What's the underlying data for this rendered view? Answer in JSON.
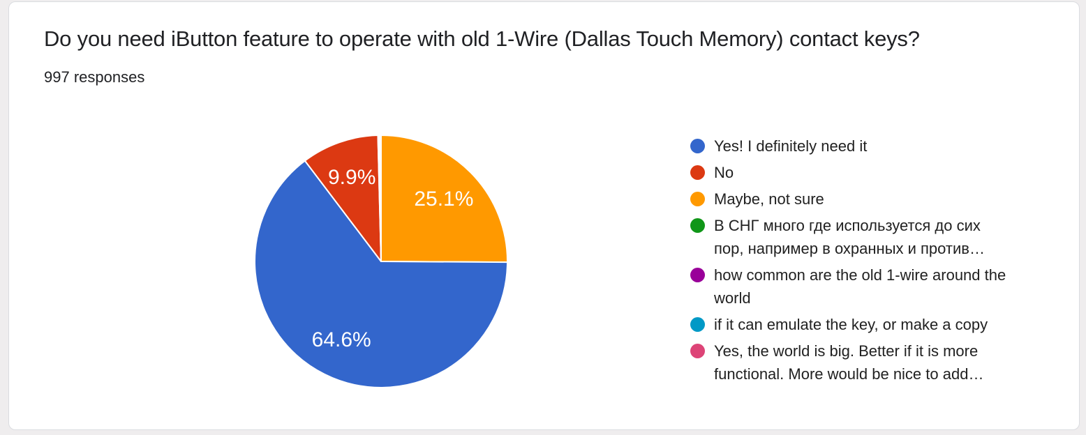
{
  "question": {
    "title": "Do you need iButton feature to operate with old 1-Wire (Dallas Touch Memory) contact keys?",
    "responses_label": "997 responses"
  },
  "chart_data": {
    "type": "pie",
    "title": "Do you need iButton feature to operate with old 1-Wire (Dallas Touch Memory) contact keys?",
    "total_responses": 997,
    "legend_position": "right",
    "slice_label_format": "percent",
    "min_percent_for_slice_label": 1,
    "start_angle": "12-o-clock",
    "direction": "clockwise",
    "draw_order_clockwise_from_top": [
      2,
      0,
      1,
      3,
      4,
      5,
      6
    ],
    "slices": [
      {
        "label": "Yes! I definitely need it",
        "percent": 64.6,
        "color": "#3366CC"
      },
      {
        "label": "No",
        "percent": 9.9,
        "color": "#DC3912"
      },
      {
        "label": "Maybe, not sure",
        "percent": 25.1,
        "color": "#FF9900"
      },
      {
        "label": "В СНГ много где используется до сих пор, например в охранных и против…",
        "percent": 0.1,
        "color": "#109618"
      },
      {
        "label": "how common are the old 1-wire around the world",
        "percent": 0.1,
        "color": "#990099"
      },
      {
        "label": "if it can emulate the key, or make a copy",
        "percent": 0.1,
        "color": "#0099C6"
      },
      {
        "label": "Yes, the world is big. Better if it is more functional. More would be nice to add…",
        "percent": 0.1,
        "color": "#DD4477"
      }
    ]
  }
}
